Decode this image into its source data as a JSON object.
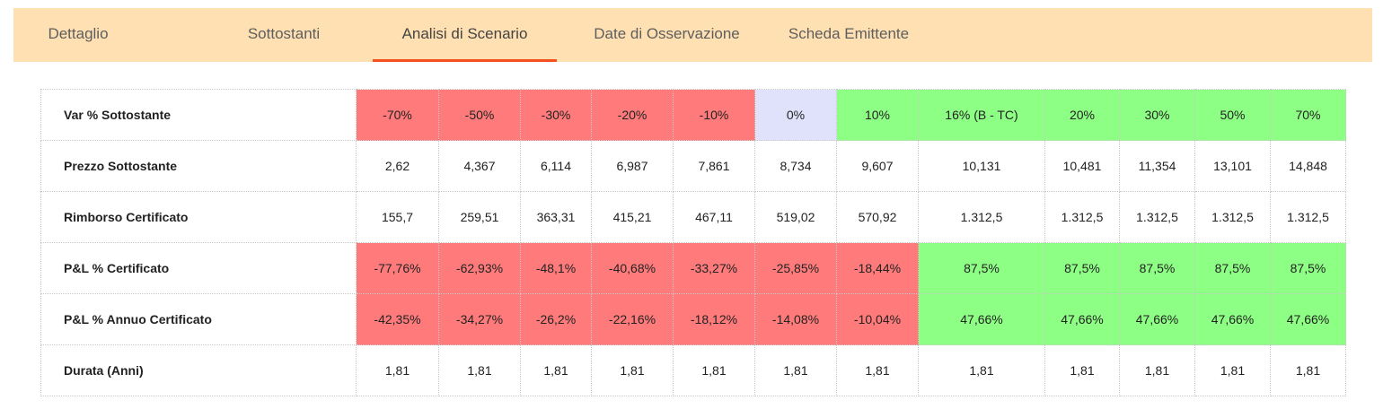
{
  "tabs": [
    {
      "label": "Dettaglio"
    },
    {
      "label": "Sottostanti"
    },
    {
      "label": "Analisi di Scenario",
      "active": true
    },
    {
      "label": "Date di Osservazione"
    },
    {
      "label": "Scheda Emittente"
    }
  ],
  "colors": {
    "tabbar_bg": "#ffe0b2",
    "active_underline": "#f4511e",
    "loss": "#ff7b7b",
    "gain": "#8dff84",
    "neutral": "#e0e2fb"
  },
  "scenario_table": {
    "rows": [
      {
        "label": "Var % Sottostante",
        "values": [
          "-70%",
          "-50%",
          "-30%",
          "-20%",
          "-10%",
          "0%",
          "10%",
          "16% (B - TC)",
          "20%",
          "30%",
          "50%",
          "70%"
        ],
        "colors": [
          "red",
          "red",
          "red",
          "red",
          "red",
          "blue",
          "green",
          "green",
          "green",
          "green",
          "green",
          "green"
        ]
      },
      {
        "label": "Prezzo Sottostante",
        "values": [
          "2,62",
          "4,367",
          "6,114",
          "6,987",
          "7,861",
          "8,734",
          "9,607",
          "10,131",
          "10,481",
          "11,354",
          "13,101",
          "14,848"
        ],
        "colors": []
      },
      {
        "label": "Rimborso Certificato",
        "values": [
          "155,7",
          "259,51",
          "363,31",
          "415,21",
          "467,11",
          "519,02",
          "570,92",
          "1.312,5",
          "1.312,5",
          "1.312,5",
          "1.312,5",
          "1.312,5"
        ],
        "colors": []
      },
      {
        "label": "P&L % Certificato",
        "values": [
          "-77,76%",
          "-62,93%",
          "-48,1%",
          "-40,68%",
          "-33,27%",
          "-25,85%",
          "-18,44%",
          "87,5%",
          "87,5%",
          "87,5%",
          "87,5%",
          "87,5%"
        ],
        "colors": [
          "red",
          "red",
          "red",
          "red",
          "red",
          "red",
          "red",
          "green",
          "green",
          "green",
          "green",
          "green"
        ]
      },
      {
        "label": "P&L % Annuo Certificato",
        "values": [
          "-42,35%",
          "-34,27%",
          "-26,2%",
          "-22,16%",
          "-18,12%",
          "-14,08%",
          "-10,04%",
          "47,66%",
          "47,66%",
          "47,66%",
          "47,66%",
          "47,66%"
        ],
        "colors": [
          "red",
          "red",
          "red",
          "red",
          "red",
          "red",
          "red",
          "green",
          "green",
          "green",
          "green",
          "green"
        ]
      },
      {
        "label": "Durata (Anni)",
        "values": [
          "1,81",
          "1,81",
          "1,81",
          "1,81",
          "1,81",
          "1,81",
          "1,81",
          "1,81",
          "1,81",
          "1,81",
          "1,81",
          "1,81"
        ],
        "colors": []
      }
    ]
  }
}
